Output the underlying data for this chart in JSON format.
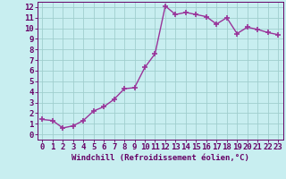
{
  "x": [
    0,
    1,
    2,
    3,
    4,
    5,
    6,
    7,
    8,
    9,
    10,
    11,
    12,
    13,
    14,
    15,
    16,
    17,
    18,
    19,
    20,
    21,
    22,
    23
  ],
  "y": [
    1.4,
    1.3,
    0.6,
    0.8,
    1.3,
    2.2,
    2.6,
    3.3,
    4.3,
    4.4,
    6.3,
    7.6,
    12.1,
    11.3,
    11.5,
    11.3,
    11.1,
    10.4,
    11.0,
    9.5,
    10.1,
    9.9,
    9.6,
    9.4
  ],
  "line_color": "#993399",
  "marker": "+",
  "marker_size": 4,
  "marker_lw": 1.2,
  "line_width": 1.0,
  "bg_color": "#c8eef0",
  "grid_color": "#a0cece",
  "xlabel": "Windchill (Refroidissement éolien,°C)",
  "xlim": [
    -0.5,
    23.5
  ],
  "ylim": [
    -0.5,
    12.5
  ],
  "xticks": [
    0,
    1,
    2,
    3,
    4,
    5,
    6,
    7,
    8,
    9,
    10,
    11,
    12,
    13,
    14,
    15,
    16,
    17,
    18,
    19,
    20,
    21,
    22,
    23
  ],
  "yticks": [
    0,
    1,
    2,
    3,
    4,
    5,
    6,
    7,
    8,
    9,
    10,
    11,
    12
  ],
  "text_color": "#660066",
  "font_size_xlabel": 6.5,
  "font_size_ticks": 6.5
}
